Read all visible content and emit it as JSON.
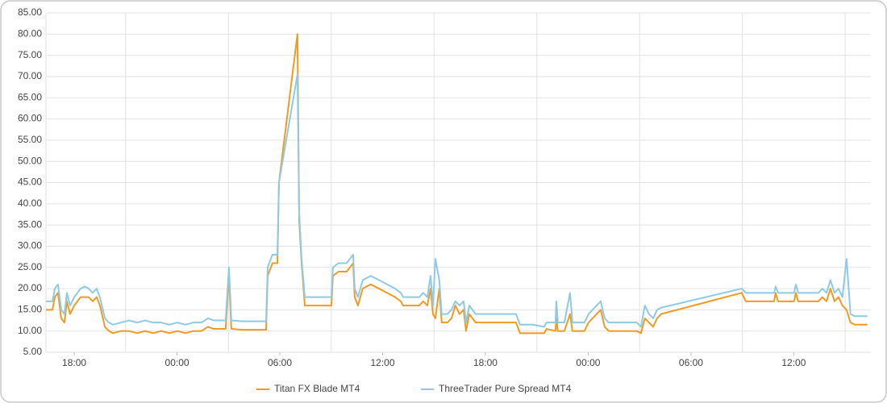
{
  "chart_data": {
    "type": "line",
    "x": [
      16.35,
      16.73,
      16.87,
      17.05,
      17.24,
      17.43,
      17.57,
      17.76,
      18.0,
      18.19,
      18.37,
      18.61,
      18.84,
      19.08,
      19.31,
      19.5,
      19.79,
      20.02,
      20.26,
      20.73,
      21.2,
      21.67,
      22.14,
      22.61,
      23.08,
      23.55,
      24.02,
      24.49,
      24.96,
      25.43,
      25.81,
      26.14,
      26.84,
      27.03,
      27.17,
      27.79,
      29.2,
      29.29,
      29.57,
      29.86,
      29.95,
      31.03,
      31.13,
      31.27,
      31.46,
      32.02,
      33.01,
      33.1,
      33.43,
      33.9,
      34.28,
      34.37,
      34.56,
      34.84,
      35.31,
      35.79,
      36.26,
      36.73,
      37.06,
      37.2,
      38.14,
      38.37,
      38.61,
      38.8,
      38.94,
      39.08,
      39.31,
      39.45,
      39.78,
      40.02,
      40.25,
      40.49,
      40.73,
      40.87,
      41.06,
      41.43,
      41.9,
      43.79,
      44.02,
      44.73,
      45.43,
      45.57,
      46.09,
      46.14,
      46.23,
      46.61,
      46.94,
      47.08,
      47.78,
      48.02,
      48.49,
      48.73,
      48.96,
      49.2,
      50.84,
      51.08,
      51.31,
      51.55,
      51.79,
      52.02,
      52.26,
      56.96,
      57.2,
      57.44,
      58.85,
      58.94,
      59.08,
      60.02,
      60.12,
      60.26,
      61.44,
      61.67,
      61.91,
      62.14,
      62.38,
      62.61,
      62.84,
      63.08,
      63.31,
      63.55,
      64.3
    ],
    "series": [
      {
        "name": "Titan FX Blade MT4",
        "color": "#f09a22",
        "values": [
          15,
          15,
          18,
          19,
          13,
          12,
          17,
          14,
          16,
          17,
          18,
          18,
          18,
          17,
          18,
          16,
          11,
          10,
          9.5,
          10,
          10,
          9.5,
          10,
          9.5,
          10,
          9.5,
          10,
          9.5,
          10,
          10,
          11,
          10.5,
          10.5,
          23,
          10.5,
          10.3,
          10.3,
          23,
          26,
          26,
          45,
          80,
          36,
          26,
          16,
          16,
          16,
          23,
          24,
          24,
          26,
          18,
          16,
          20,
          21,
          20,
          19,
          18,
          17,
          16,
          16,
          17,
          16,
          20,
          14,
          13,
          20,
          12,
          12,
          13,
          16,
          14,
          15,
          10,
          14,
          12,
          12,
          12,
          9.5,
          9.5,
          9.5,
          10.5,
          10,
          13,
          10,
          10,
          14,
          10,
          10,
          12,
          14,
          15,
          11,
          10,
          10,
          9.5,
          13,
          12,
          11,
          13,
          14,
          19,
          17,
          17,
          17,
          19,
          17,
          17,
          19,
          17,
          17,
          18,
          17,
          20,
          17,
          18,
          16,
          15,
          12,
          11.5,
          11.5
        ]
      },
      {
        "name": "ThreeTrader Pure Spread MT4",
        "color": "#8ecae6",
        "values": [
          17,
          17,
          20,
          21,
          15,
          14,
          19,
          16,
          18,
          19,
          20,
          20.5,
          20,
          19,
          20,
          18,
          13,
          12,
          11.5,
          12,
          12.5,
          12,
          12.5,
          12,
          12,
          11.5,
          12,
          11.5,
          12,
          12,
          13,
          12.5,
          12.5,
          25,
          12.5,
          12.3,
          12.3,
          25,
          28,
          28,
          45,
          70.5,
          38,
          27,
          18,
          18,
          18,
          25,
          26,
          26,
          28,
          20,
          18,
          22,
          23,
          22,
          21,
          20,
          19,
          18,
          18,
          19,
          18,
          23,
          16,
          27,
          22,
          14,
          14,
          15,
          17,
          16,
          17,
          12,
          16,
          14,
          14,
          14,
          11.5,
          11.5,
          11,
          12,
          12,
          17,
          12,
          12,
          19,
          12,
          12,
          14,
          16,
          17,
          13,
          12,
          12,
          11,
          16,
          14,
          13,
          15,
          15.5,
          20,
          19,
          19,
          19,
          20.5,
          19,
          19,
          21,
          19,
          19,
          20,
          19,
          22,
          19,
          20,
          18,
          27,
          14,
          13.5,
          13.5
        ]
      }
    ],
    "xlim": [
      16.35,
      64.5
    ],
    "xticks": [
      {
        "value": 18,
        "label": "18:00"
      },
      {
        "value": 24,
        "label": "00:00"
      },
      {
        "value": 30,
        "label": "06:00"
      },
      {
        "value": 36,
        "label": "12:00"
      },
      {
        "value": 42,
        "label": "18:00"
      },
      {
        "value": 48,
        "label": "00:00"
      },
      {
        "value": 54,
        "label": "06:00"
      },
      {
        "value": 60,
        "label": "12:00"
      }
    ],
    "x_grid_lines": [
      21,
      27,
      33,
      39,
      45,
      51,
      57,
      63
    ],
    "ylim": [
      5,
      85
    ],
    "yticks": [
      {
        "value": 5,
        "label": "5.00"
      },
      {
        "value": 10,
        "label": "10.00"
      },
      {
        "value": 15,
        "label": "15.00"
      },
      {
        "value": 20,
        "label": "20.00"
      },
      {
        "value": 25,
        "label": "25.00"
      },
      {
        "value": 30,
        "label": "30.00"
      },
      {
        "value": 35,
        "label": "35.00"
      },
      {
        "value": 40,
        "label": "40.00"
      },
      {
        "value": 45,
        "label": "45.00"
      },
      {
        "value": 50,
        "label": "50.00"
      },
      {
        "value": 55,
        "label": "55.00"
      },
      {
        "value": 60,
        "label": "60.00"
      },
      {
        "value": 65,
        "label": "65.00"
      },
      {
        "value": 70,
        "label": "70.00"
      },
      {
        "value": 75,
        "label": "75.00"
      },
      {
        "value": 80,
        "label": "80.00"
      },
      {
        "value": 85,
        "label": "85.00"
      }
    ],
    "grid": true,
    "legend": "bottom"
  }
}
